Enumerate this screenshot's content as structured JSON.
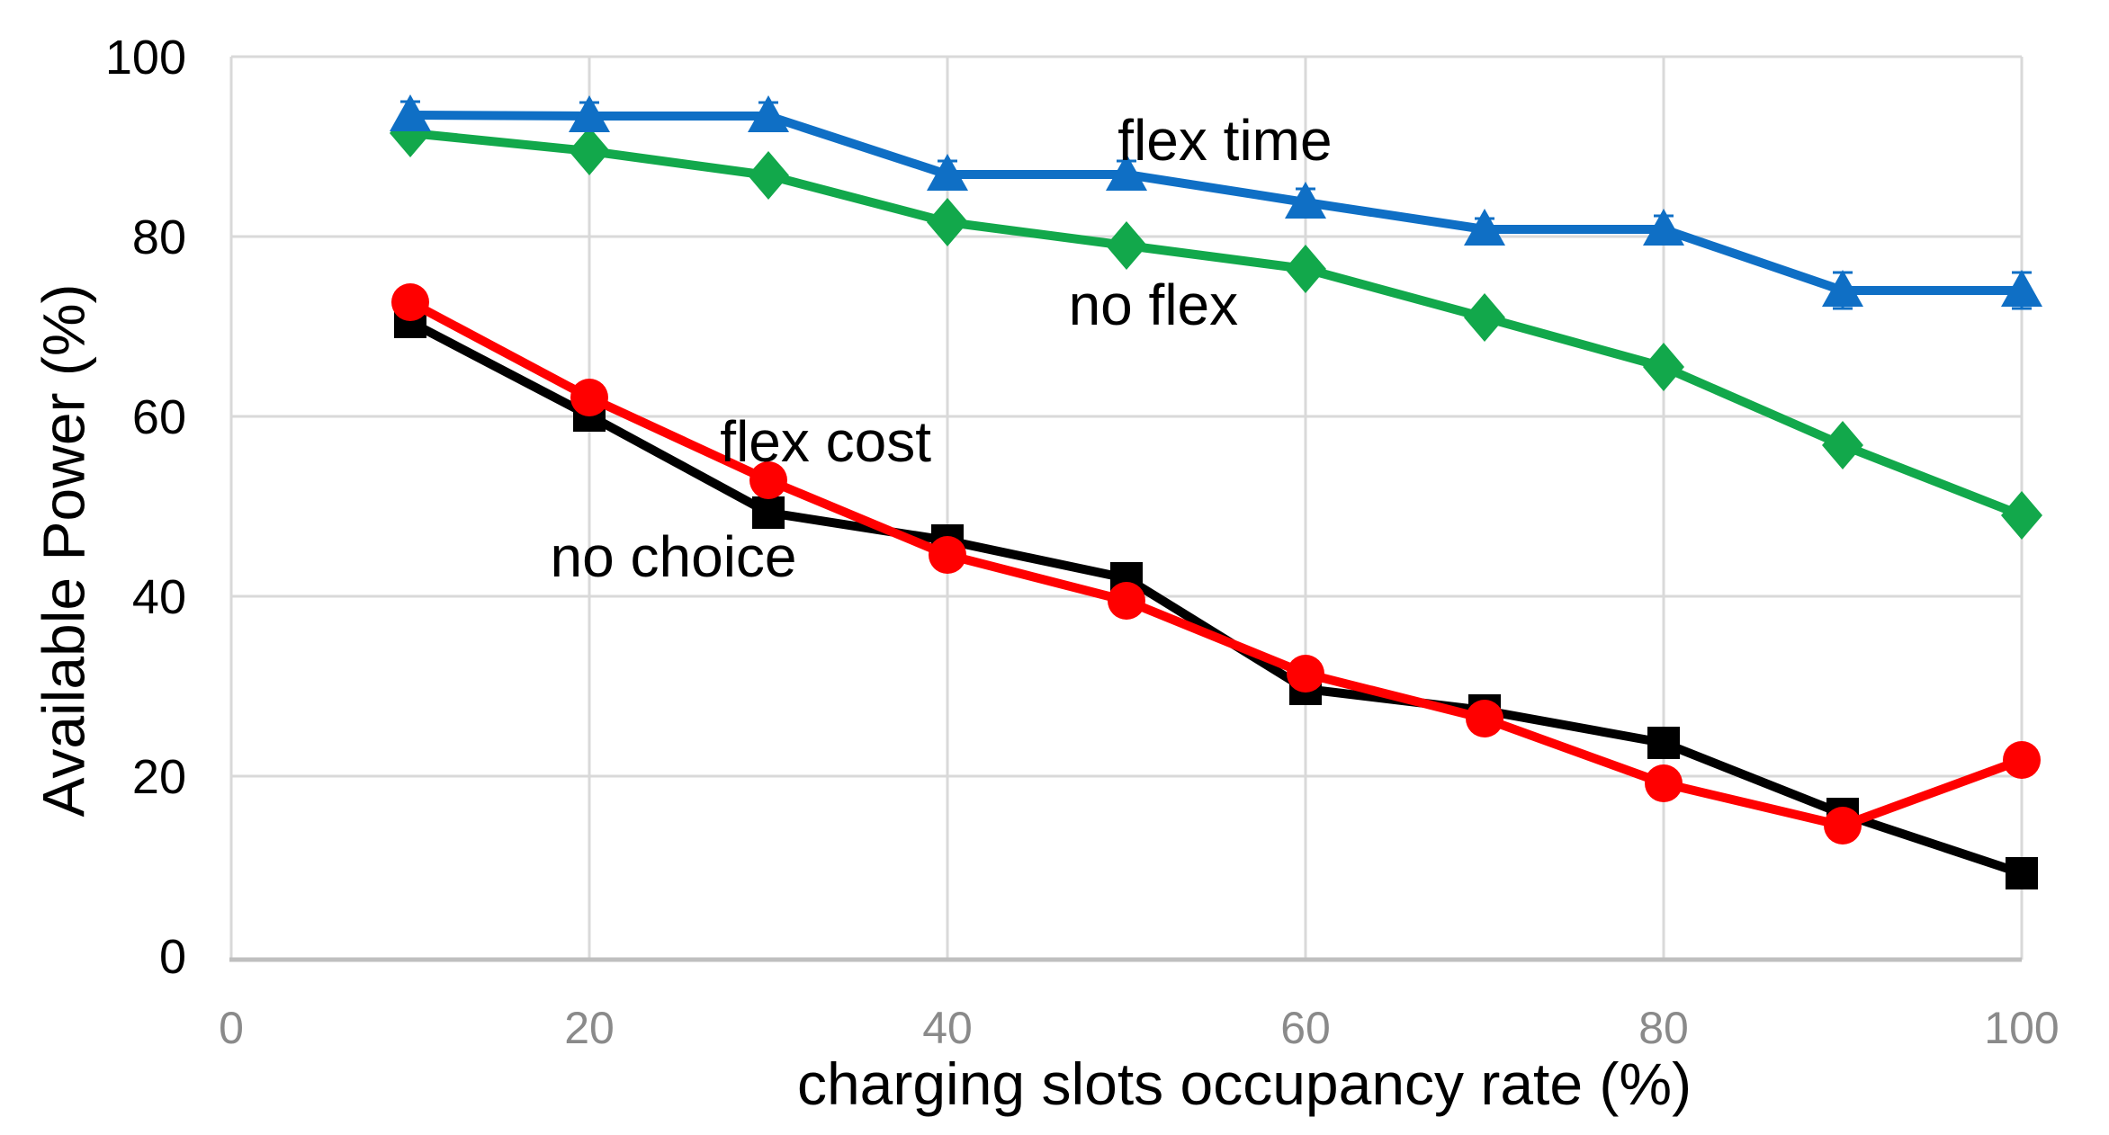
{
  "figure": {
    "x_axis_title": "charging slots occupancy rate (%)",
    "y_axis_title": "Available Power (%)"
  },
  "chart_data": {
    "type": "line",
    "title": "",
    "xlabel": "charging slots occupancy rate (%)",
    "ylabel": "Available Power (%)",
    "xlim": [
      0,
      100
    ],
    "ylim": [
      0,
      100
    ],
    "grid": true,
    "x_ticks": [
      "0",
      "20",
      "40",
      "60",
      "80",
      "100"
    ],
    "y_ticks": [
      "0",
      "20",
      "40",
      "60",
      "80",
      "100"
    ],
    "x": [
      10,
      20,
      30,
      40,
      50,
      60,
      70,
      80,
      90,
      100
    ],
    "series": [
      {
        "name": "no flex",
        "marker": "diamond",
        "color": "#12a84b",
        "values": [
          91.5,
          89.5,
          86.8,
          81.6,
          79.0,
          76.4,
          71.0,
          65.5,
          56.8,
          49.0
        ]
      },
      {
        "name": "flex time",
        "marker": "triangle",
        "color": "#0f6fc5",
        "values": [
          93.5,
          93.4,
          93.4,
          86.9,
          86.9,
          83.8,
          80.8,
          80.8,
          74.0,
          74.0
        ],
        "error_bars": [
          1.5,
          1.5,
          1.5,
          1.5,
          1.5,
          1.5,
          1.2,
          1.5,
          2.0,
          2.0
        ]
      },
      {
        "name": "no choice",
        "marker": "square",
        "color": "#000000",
        "values": [
          70.5,
          60.1,
          49.3,
          46.2,
          42.0,
          29.7,
          27.3,
          23.7,
          15.8,
          9.2
        ]
      },
      {
        "name": "flex cost",
        "marker": "circle",
        "color": "#ff0000",
        "values": [
          72.7,
          62.1,
          52.9,
          44.6,
          39.5,
          31.4,
          26.4,
          19.2,
          14.5,
          21.8
        ]
      }
    ],
    "annotations": [
      {
        "text": "flex time",
        "x": 55.5,
        "y": 90.7
      },
      {
        "text": "no flex",
        "x": 51.5,
        "y": 72.4
      },
      {
        "text": "flex cost",
        "x": 33.2,
        "y": 57.2
      },
      {
        "text": "no choice",
        "x": 24.7,
        "y": 44.4
      }
    ],
    "legend_position": "in-plot-labels",
    "gridline_color": "#d9d9d9",
    "axis_line_color": "#bfbfbf"
  }
}
